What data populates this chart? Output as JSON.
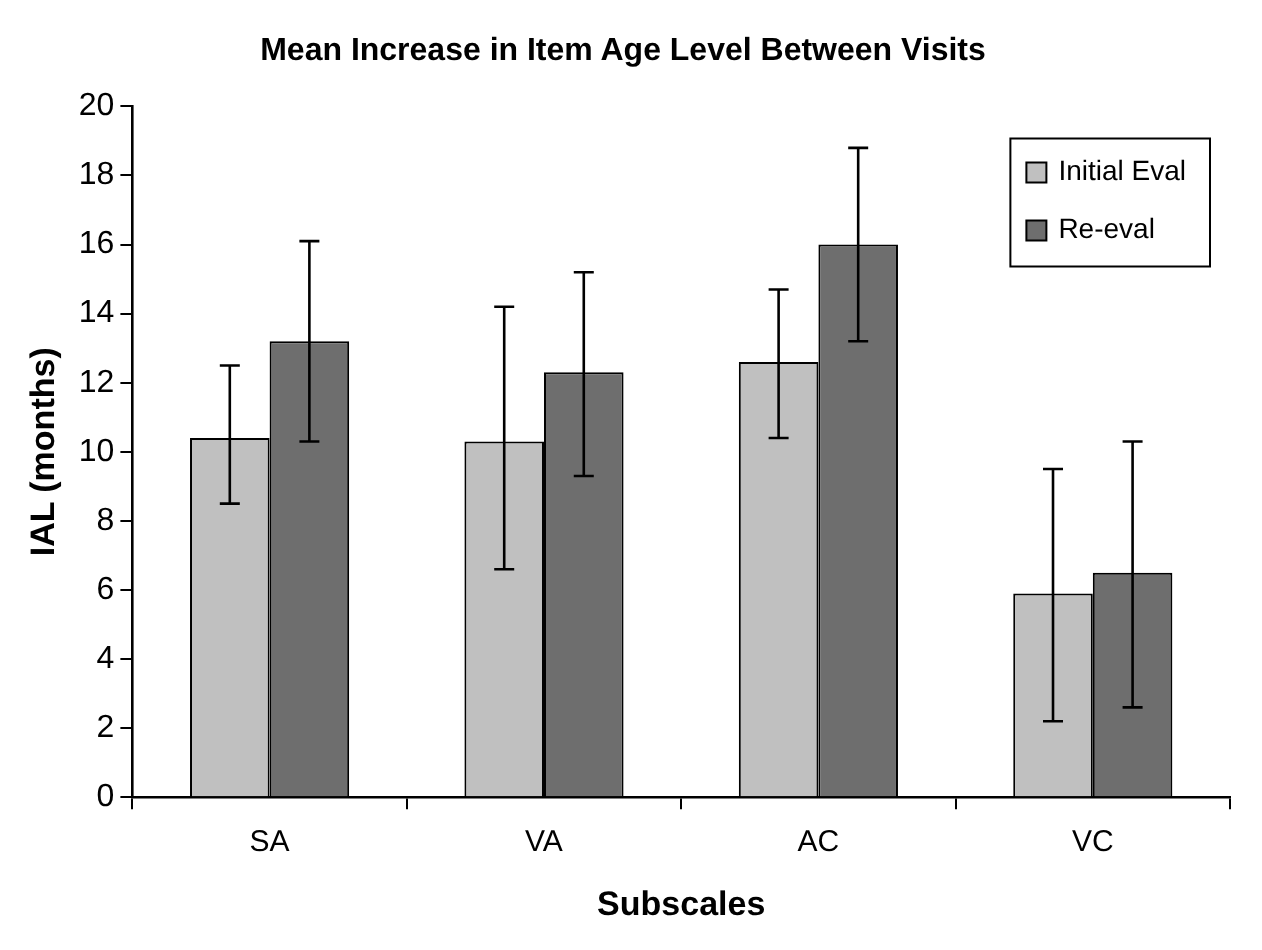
{
  "chart_data": {
    "type": "bar",
    "title": "Mean Increase in Item Age Level Between Visits",
    "xlabel": "Subscales",
    "ylabel": "IAL (months)",
    "categories": [
      "SA",
      "VA",
      "AC",
      "VC"
    ],
    "series": [
      {
        "name": "Initial Eval",
        "color": "#c0c0c0",
        "values": [
          10.4,
          10.3,
          12.6,
          5.9
        ],
        "errors": [
          [
            8.5,
            12.5
          ],
          [
            6.6,
            14.2
          ],
          [
            10.4,
            14.7
          ],
          [
            2.2,
            9.5
          ]
        ]
      },
      {
        "name": "Re-eval",
        "color": "#6e6e6e",
        "values": [
          13.2,
          12.3,
          16.0,
          6.5
        ],
        "errors": [
          [
            10.3,
            16.1
          ],
          [
            9.3,
            15.2
          ],
          [
            13.2,
            18.8
          ],
          [
            2.6,
            10.3
          ]
        ]
      }
    ],
    "ylim": [
      0,
      20
    ],
    "yticks": [
      0,
      2,
      4,
      6,
      8,
      10,
      12,
      14,
      16,
      18,
      20
    ],
    "grid": false,
    "legend": "top right"
  }
}
